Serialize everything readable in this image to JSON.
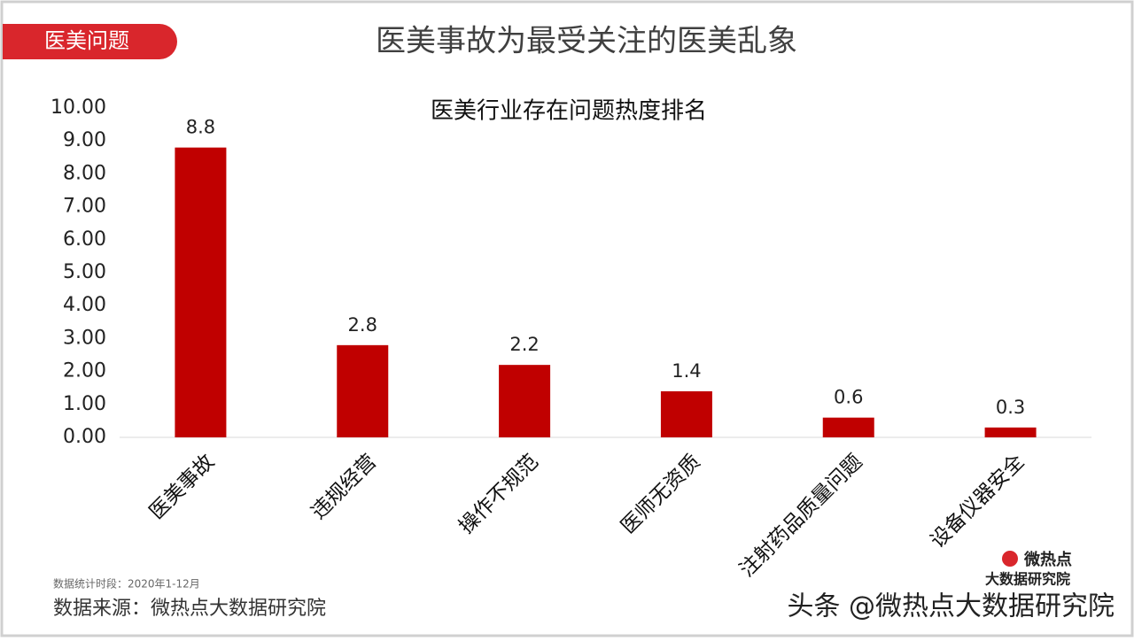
{
  "slide": {
    "tag": "医美问题",
    "headline": "医美事故为最受关注的医美乱象",
    "period_note": "数据统计时段：2020年1-12月",
    "source": "数据来源：微热点大数据研究院",
    "logo_top": "微热点",
    "logo_bottom": "大数据研究院",
    "watermark": "头条 @微热点大数据研究院"
  },
  "chart_data": {
    "type": "bar",
    "title": "医美行业存在问题热度排名",
    "categories": [
      "医美事故",
      "违规经营",
      "操作不规范",
      "医师无资质",
      "注射药品质量问题",
      "设备仪器安全"
    ],
    "values": [
      8.8,
      2.8,
      2.2,
      1.4,
      0.6,
      0.3
    ],
    "color": "#c00000",
    "ylim": [
      0,
      10
    ],
    "yticks": [
      {
        "value": 0,
        "label": "0.00"
      },
      {
        "value": 1,
        "label": "1.00"
      },
      {
        "value": 2,
        "label": "2.00"
      },
      {
        "value": 3,
        "label": "3.00"
      },
      {
        "value": 4,
        "label": "4.00"
      },
      {
        "value": 5,
        "label": "5.00"
      },
      {
        "value": 6,
        "label": "6.00"
      },
      {
        "value": 7,
        "label": "7.00"
      },
      {
        "value": 8,
        "label": "8.00"
      },
      {
        "value": 9,
        "label": "9.00"
      },
      {
        "value": 10,
        "label": "10.00"
      }
    ],
    "grid": false
  }
}
